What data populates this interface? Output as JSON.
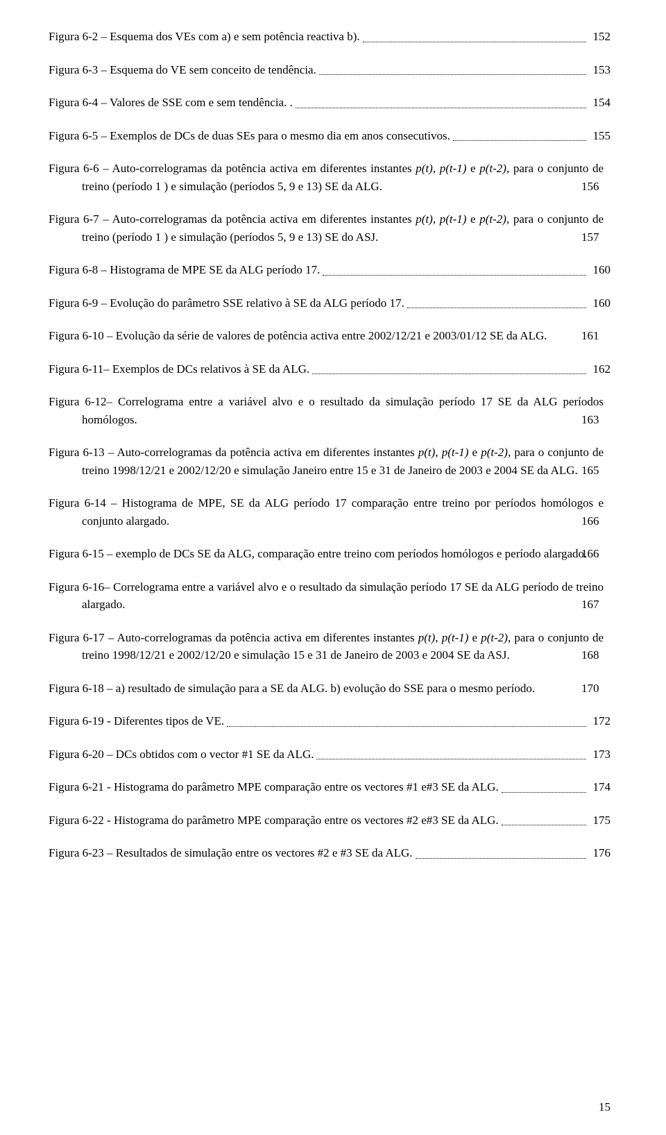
{
  "entries": [
    {
      "text": "Figura 6-2 – Esquema dos VEs com a) e sem potência reactiva b).",
      "page": "152",
      "multi": false
    },
    {
      "text": "Figura 6-3 – Esquema do VE sem conceito de tendência.",
      "page": "153",
      "multi": false
    },
    {
      "text": "Figura 6-4 – Valores de SSE com e sem tendência. .",
      "page": "154",
      "multi": false
    },
    {
      "text": "Figura 6-5 – Exemplos de DCs de duas SEs para o mesmo dia em anos consecutivos.",
      "page": "155",
      "multi": false
    },
    {
      "textParts": [
        "Figura 6-6 – Auto-correlogramas da potência activa em diferentes instantes ",
        "p(t)",
        ", ",
        "p(t-1)",
        " e ",
        "p(t-2)",
        ", para o conjunto de treino (período 1 ) e simulação (períodos 5, 9 e 13) SE da ALG."
      ],
      "italics": [
        1,
        3,
        5
      ],
      "page": "156",
      "multi": true
    },
    {
      "textParts": [
        "Figura 6-7 – Auto-correlogramas da potência activa em diferentes instantes ",
        "p(t)",
        ", ",
        "p(t-1)",
        " e ",
        "p(t-2)",
        ", para o conjunto de treino (período 1 ) e simulação (períodos 5, 9 e 13) SE do ASJ."
      ],
      "italics": [
        1,
        3,
        5
      ],
      "page": "157",
      "multi": true
    },
    {
      "text": "Figura 6-8 – Histograma de MPE SE da ALG período 17.",
      "page": "160",
      "multi": false
    },
    {
      "text": "Figura 6-9 – Evolução do parâmetro SSE relativo à SE da ALG período 17.",
      "page": "160",
      "multi": false
    },
    {
      "text": "Figura 6-10 – Evolução da série de valores de potência activa entre 2002/12/21 e 2003/01/12 SE da ALG.",
      "page": "161",
      "multi": true
    },
    {
      "text": "Figura 6-11– Exemplos de DCs relativos à SE da ALG.",
      "page": "162",
      "multi": false
    },
    {
      "text": "Figura 6-12– Correlograma entre a variável alvo e o resultado da simulação período 17 SE da ALG períodos homólogos.",
      "page": "163",
      "multi": true
    },
    {
      "textParts": [
        "Figura 6-13 – Auto-correlogramas da potência activa em diferentes instantes ",
        "p(t)",
        ", ",
        "p(t-1)",
        " e ",
        "p(t-2)",
        ", para o conjunto de treino 1998/12/21 e  2002/12/20  e simulação Janeiro entre 15 e 31 de Janeiro de  2003 e 2004 SE da ALG."
      ],
      "italics": [
        1,
        3,
        5
      ],
      "page": "165",
      "multi": true
    },
    {
      "text": "Figura 6-14 – Histograma de MPE, SE da ALG período 17 comparação entre treino por períodos homólogos e conjunto alargado.",
      "page": "166",
      "multi": true
    },
    {
      "text": "Figura 6-15 – exemplo de DCs  SE da ALG, comparação entre treino com períodos homólogos e período alargado.",
      "page": "166",
      "multi": true
    },
    {
      "text": "Figura 6-16– Correlograma entre a variável alvo e o resultado da simulação período 17 SE da ALG período de treino alargado.",
      "page": "167",
      "multi": true
    },
    {
      "textParts": [
        "Figura 6-17 – Auto-correlogramas da potência activa em diferentes instantes ",
        "p(t)",
        ", ",
        "p(t-1)",
        " e ",
        "p(t-2)",
        ", para o conjunto de treino 1998/12/21 e  2002/12/20  e simulação 15 e 31 de Janeiro de 2003 e 2004 SE da ASJ."
      ],
      "italics": [
        1,
        3,
        5
      ],
      "page": "168",
      "multi": true
    },
    {
      "text": "Figura 6-18 – a) resultado de simulação para a SE da ALG. b) evolução do SSE para o mesmo período.",
      "page": "170",
      "multi": true
    },
    {
      "text": "Figura 6-19 - Diferentes tipos de VE.",
      "page": "172",
      "multi": false
    },
    {
      "text": "Figura 6-20 – DCs obtidos com o vector #1 SE da ALG.",
      "page": "173",
      "multi": false
    },
    {
      "text": "Figura 6-21 - Histograma do parâmetro MPE comparação entre os vectores #1 e#3 SE da ALG.",
      "page": "174",
      "multi": false
    },
    {
      "text": "Figura 6-22 - Histograma do parâmetro MPE comparação entre os vectores #2 e#3 SE da ALG.",
      "page": "175",
      "multi": false
    },
    {
      "text": "Figura 6-23 – Resultados de simulação entre os vectores #2 e #3 SE da ALG.",
      "page": "176",
      "multi": false
    }
  ],
  "footerPage": "15",
  "style": {
    "fontFamily": "Times New Roman",
    "fontSizePt": 13,
    "textColor": "#000000",
    "background": "#ffffff",
    "leaderStyle": "dotted"
  }
}
